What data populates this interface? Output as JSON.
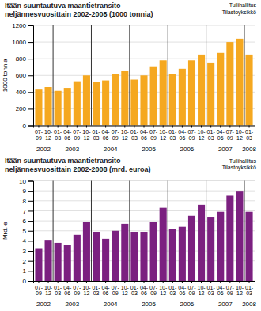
{
  "chart_data": [
    {
      "type": "bar",
      "title": "Itään suuntautuva maantietransito\nneljännesvuosittain 2002-2008 (1000 tonnia)",
      "y_label": "1000 tonnia",
      "annotations": [
        "Tullihallitus\nTilastoyksikkö"
      ],
      "categories": [
        "07-\n09",
        "10-\n12",
        "01-\n03",
        "04-\n06",
        "07-\n09",
        "10-\n12",
        "01-\n03",
        "04-\n06",
        "07-\n09",
        "10-\n12",
        "01-\n03",
        "04-\n06",
        "07-\n09",
        "10-\n12",
        "01-\n03",
        "04-\n06",
        "07-\n09",
        "10-\n12",
        "01-\n03",
        "04-\n06",
        "07-\n09",
        "10-\n12",
        "01-\n03"
      ],
      "year_labels": [
        "2002",
        "2003",
        "2004",
        "2005",
        "2006",
        "2007",
        "2008"
      ],
      "values": [
        430,
        460,
        415,
        450,
        530,
        600,
        520,
        540,
        615,
        650,
        550,
        600,
        700,
        780,
        620,
        680,
        780,
        850,
        755,
        870,
        1000,
        1040,
        850
      ],
      "color": "#F5A820",
      "ylim": [
        0,
        1200
      ],
      "yticks": [
        0,
        200,
        400,
        600,
        800,
        1000,
        1200
      ],
      "grid": true
    },
    {
      "type": "bar",
      "title": "Itään suuntautuva maantietransito\nneljännesvuosittain 2002-2008 (mrd. euroa)",
      "y_label": "Mrd. e",
      "annotations": [
        "Tullihallitus\nTilastoyksikkö"
      ],
      "categories": [
        "07-\n09",
        "10-\n12",
        "01-\n03",
        "04-\n06",
        "07-\n09",
        "10-\n12",
        "01-\n03",
        "04-\n06",
        "07-\n09",
        "10-\n12",
        "01-\n03",
        "04-\n06",
        "07-\n09",
        "10-\n12",
        "01-\n03",
        "04-\n06",
        "07-\n09",
        "10-\n12",
        "01-\n03",
        "04-\n06",
        "07-\n09",
        "10-\n12",
        "01-\n03"
      ],
      "year_labels": [
        "2002",
        "2003",
        "2004",
        "2005",
        "2006",
        "2007",
        "2008"
      ],
      "values": [
        3.2,
        4.1,
        3.8,
        3.6,
        4.6,
        5.9,
        4.9,
        4.2,
        5.0,
        5.7,
        4.9,
        4.9,
        5.9,
        7.3,
        5.2,
        5.4,
        6.5,
        7.6,
        6.4,
        6.9,
        8.5,
        9.0,
        6.9
      ],
      "color": "#7B2080",
      "ylim": [
        0,
        10
      ],
      "yticks": [
        0,
        1,
        2,
        3,
        4,
        5,
        6,
        7,
        8,
        9,
        10
      ],
      "grid": true
    }
  ]
}
